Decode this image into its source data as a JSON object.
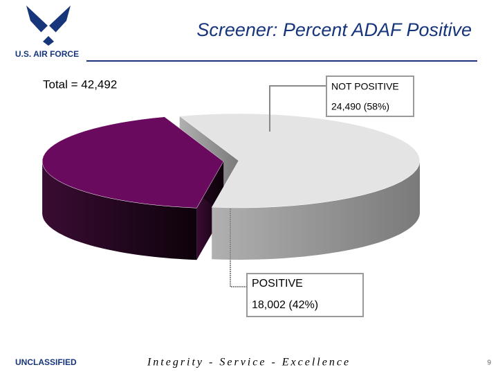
{
  "header": {
    "logo_text": "U.S. AIR FORCE"
  },
  "chart_data": {
    "type": "pie",
    "title": "Screener: Percent ADAF Positive",
    "total_label": "Total = 42,492",
    "categories": [
      "NOT POSITIVE",
      "POSITIVE"
    ],
    "values": [
      24490,
      18002
    ],
    "value_labels": [
      "24,490 (58%)",
      "18,002 (42%)"
    ],
    "colors": [
      "#e4e4e4",
      "#6a0a5e"
    ]
  },
  "footer": {
    "classification": "UNCLASSIFIED",
    "motto": "Integrity - Service - Excellence",
    "page": "9"
  }
}
